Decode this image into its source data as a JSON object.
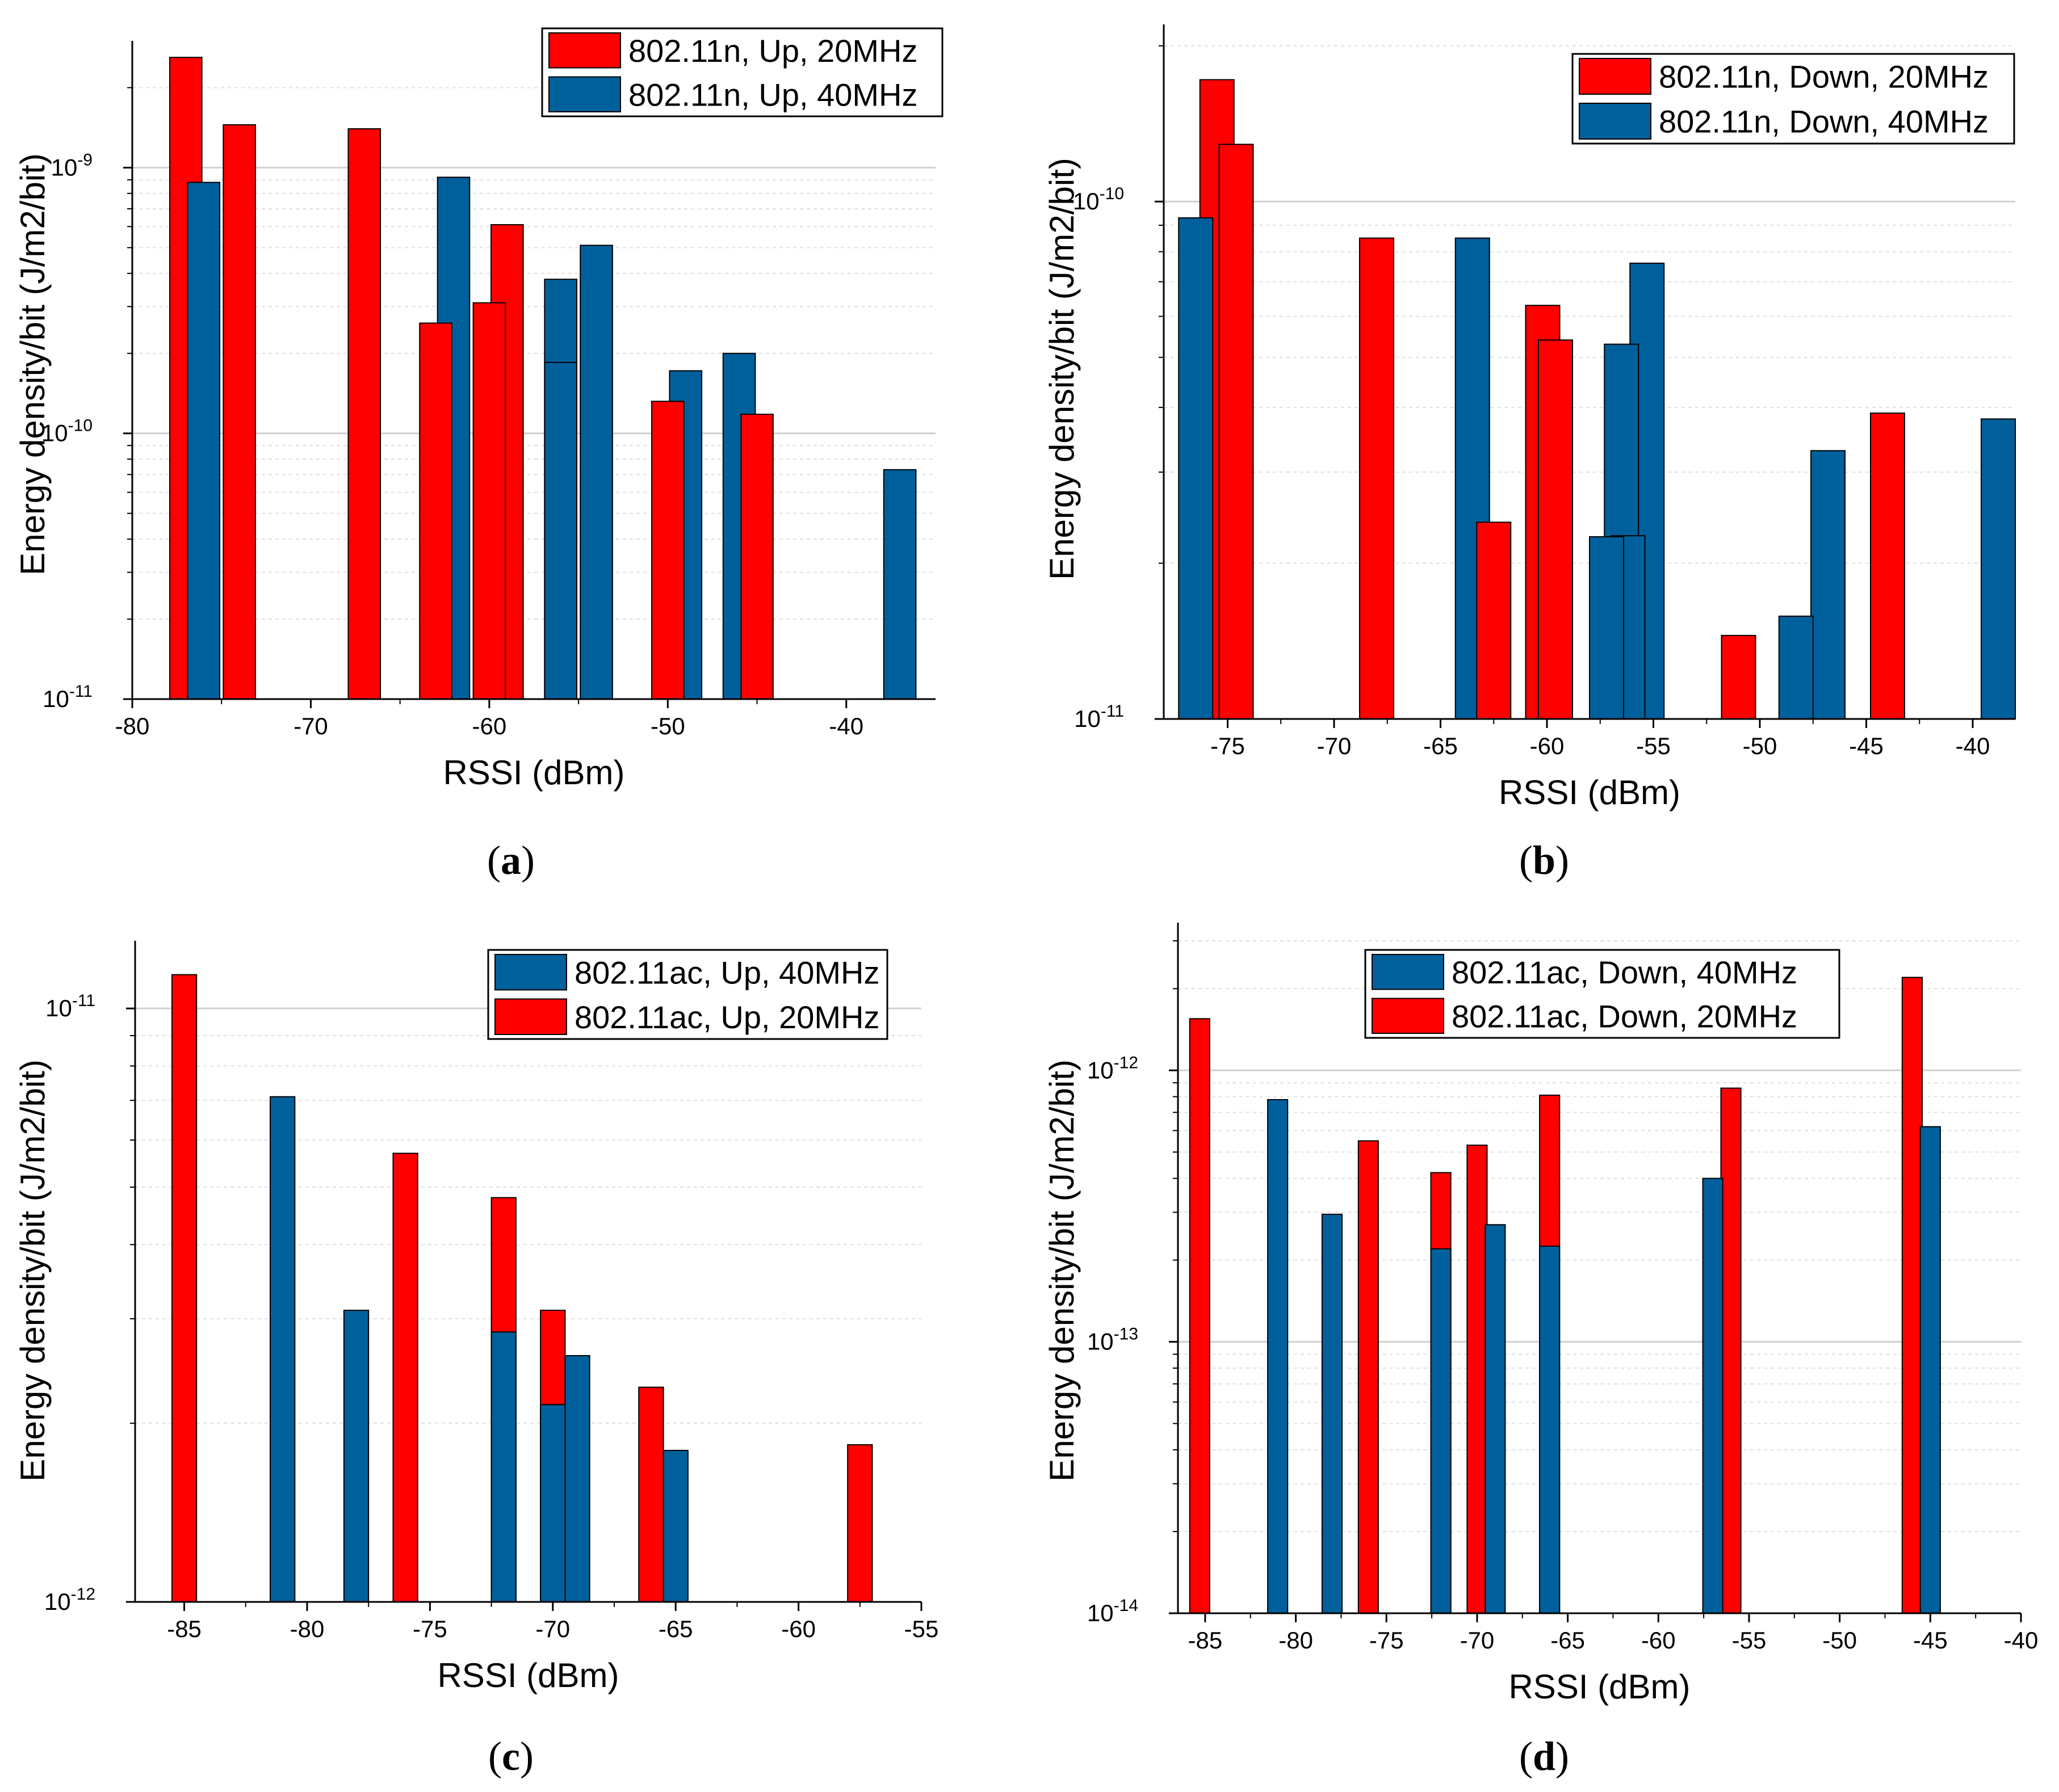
{
  "colors": {
    "red": "#ff0000",
    "blue": "#00609c",
    "grid": "#d0d0d0",
    "axis": "#000000"
  },
  "chart_data": [
    {
      "id": "a",
      "type": "bar",
      "caption": "(a)",
      "caption_letter": "a",
      "xlabel": "RSSI (dBm)",
      "ylabel": "Energy density/bit (J/m2/bit)",
      "yscale": "log",
      "xlim": [
        -80,
        -35
      ],
      "ylim": [
        1e-11,
        3e-09
      ],
      "xticks": [
        -80,
        -70,
        -60,
        -50,
        -40
      ],
      "yticks": [
        {
          "value": 1e-11,
          "base": "10",
          "exp": "-11"
        },
        {
          "value": 1e-10,
          "base": "10",
          "exp": "-10"
        },
        {
          "value": 1e-09,
          "base": "10",
          "exp": "-9"
        }
      ],
      "bar_width": 1.8,
      "legend": {
        "position": "top-right",
        "entries": [
          {
            "label": "802.11n, Up, 20MHz",
            "color": "red"
          },
          {
            "label": "802.11n, Up, 40MHz",
            "color": "blue"
          }
        ]
      },
      "series": [
        {
          "name": "802.11n, Up, 20MHz",
          "color": "red",
          "points": [
            {
              "x": -77,
              "y": 2.6e-09
            },
            {
              "x": -74,
              "y": 1.45e-09
            },
            {
              "x": -67,
              "y": 1.4e-09
            },
            {
              "x": -63,
              "y": 2.6e-10
            },
            {
              "x": -60,
              "y": 3.1e-10
            },
            {
              "x": -59,
              "y": 6.1e-10
            },
            {
              "x": -50,
              "y": 1.32e-10
            },
            {
              "x": -45,
              "y": 1.18e-10
            }
          ]
        },
        {
          "name": "802.11n, Up, 40MHz",
          "color": "blue",
          "points": [
            {
              "x": -76,
              "y": 8.8e-10
            },
            {
              "x": -62,
              "y": 9.2e-10
            },
            {
              "x": -56,
              "y": 3.8e-10
            },
            {
              "x": -56,
              "y": 1.85e-10
            },
            {
              "x": -54,
              "y": 5.1e-10
            },
            {
              "x": -49,
              "y": 1.72e-10
            },
            {
              "x": -46,
              "y": 2e-10
            },
            {
              "x": -37,
              "y": 7.3e-11
            }
          ]
        }
      ]
    },
    {
      "id": "b",
      "type": "bar",
      "caption": "(b)",
      "caption_letter": "b",
      "xlabel": "RSSI (dBm)",
      "ylabel": "Energy density/bit (J/m2/bit)",
      "yscale": "log",
      "xlim": [
        -78,
        -38
      ],
      "ylim": [
        1e-11,
        2.2e-10
      ],
      "xticks": [
        -75,
        -70,
        -65,
        -60,
        -55,
        -50,
        -45,
        -40
      ],
      "yticks": [
        {
          "value": 1e-11,
          "base": "10",
          "exp": "-11"
        },
        {
          "value": 1e-10,
          "base": "10",
          "exp": "-10"
        }
      ],
      "bar_width": 1.6,
      "legend": {
        "position": "top-right",
        "entries": [
          {
            "label": "802.11n, Down, 20MHz",
            "color": "red"
          },
          {
            "label": "802.11n, Down, 40MHz",
            "color": "blue"
          }
        ]
      },
      "series": [
        {
          "name": "802.11n, Down, 20MHz",
          "color": "red",
          "points": [
            {
              "x": -75.5,
              "y": 1.72e-10
            },
            {
              "x": -74.6,
              "y": 1.29e-10
            },
            {
              "x": -68,
              "y": 8.5e-11
            },
            {
              "x": -62.5,
              "y": 2.4e-11
            },
            {
              "x": -60.2,
              "y": 6.3e-11
            },
            {
              "x": -59.6,
              "y": 5.4e-11
            },
            {
              "x": -51,
              "y": 1.45e-11
            },
            {
              "x": -44,
              "y": 3.9e-11
            }
          ]
        },
        {
          "name": "802.11n, Down, 40MHz",
          "color": "blue",
          "points": [
            {
              "x": -76.5,
              "y": 9.3e-11
            },
            {
              "x": -63.5,
              "y": 8.5e-11
            },
            {
              "x": -57.2,
              "y": 2.25e-11
            },
            {
              "x": -56.5,
              "y": 5.3e-11
            },
            {
              "x": -56.2,
              "y": 2.26e-11
            },
            {
              "x": -55.3,
              "y": 7.6e-11
            },
            {
              "x": -48.3,
              "y": 1.58e-11
            },
            {
              "x": -46.8,
              "y": 3.3e-11
            },
            {
              "x": -38.8,
              "y": 3.8e-11
            }
          ]
        }
      ]
    },
    {
      "id": "c",
      "type": "bar",
      "caption": "(c)",
      "caption_letter": "c",
      "xlabel": "RSSI (dBm)",
      "ylabel": "Energy density/bit (J/m2/bit)",
      "yscale": "log",
      "xlim": [
        -87,
        -55
      ],
      "ylim": [
        1e-12,
        1.3e-11
      ],
      "xticks": [
        -85,
        -80,
        -75,
        -70,
        -65,
        -60,
        -55
      ],
      "yticks": [
        {
          "value": 1e-12,
          "base": "10",
          "exp": "-12"
        },
        {
          "value": 1e-11,
          "base": "10",
          "exp": "-11"
        }
      ],
      "bar_width": 1.0,
      "legend": {
        "position": "top-right",
        "entries": [
          {
            "label": "802.11ac, Up, 40MHz",
            "color": "blue"
          },
          {
            "label": "802.11ac, Up, 20MHz",
            "color": "red"
          }
        ]
      },
      "series": [
        {
          "name": "802.11ac, Up, 20MHz",
          "color": "red",
          "points": [
            {
              "x": -85,
              "y": 1.14e-11
            },
            {
              "x": -76,
              "y": 5.7e-12
            },
            {
              "x": -72,
              "y": 4.8e-12
            },
            {
              "x": -70,
              "y": 3.1e-12
            },
            {
              "x": -66,
              "y": 2.3e-12
            },
            {
              "x": -57.5,
              "y": 1.84e-12
            }
          ]
        },
        {
          "name": "802.11ac, Up, 40MHz",
          "color": "blue",
          "points": [
            {
              "x": -81,
              "y": 7.1e-12
            },
            {
              "x": -78,
              "y": 3.1e-12
            },
            {
              "x": -72,
              "y": 2.85e-12
            },
            {
              "x": -70,
              "y": 2.15e-12
            },
            {
              "x": -69,
              "y": 2.6e-12
            },
            {
              "x": -65,
              "y": 1.8e-12
            }
          ]
        }
      ]
    },
    {
      "id": "d",
      "type": "bar",
      "caption": "(d)",
      "caption_letter": "d",
      "xlabel": "RSSI (dBm)",
      "ylabel": "Energy density/bit (J/m2/bit)",
      "yscale": "log",
      "xlim": [
        -86.5,
        -40
      ],
      "ylim": [
        1e-14,
        3.5e-12
      ],
      "xticks": [
        -85,
        -80,
        -75,
        -70,
        -65,
        -60,
        -55,
        -50,
        -45,
        -40
      ],
      "yticks": [
        {
          "value": 1e-14,
          "base": "10",
          "exp": "-14"
        },
        {
          "value": 1e-13,
          "base": "10",
          "exp": "-13"
        },
        {
          "value": 1e-12,
          "base": "10",
          "exp": "-12"
        }
      ],
      "bar_width": 1.1,
      "legend": {
        "position": "top-center",
        "entries": [
          {
            "label": "802.11ac, Down, 40MHz",
            "color": "blue"
          },
          {
            "label": "802.11ac, Down, 20MHz",
            "color": "red"
          }
        ]
      },
      "series": [
        {
          "name": "802.11ac, Down, 20MHz",
          "color": "red",
          "points": [
            {
              "x": -85.3,
              "y": 1.55e-12
            },
            {
              "x": -76,
              "y": 5.5e-13
            },
            {
              "x": -72,
              "y": 4.2e-13
            },
            {
              "x": -70,
              "y": 5.3e-13
            },
            {
              "x": -66,
              "y": 8.1e-13
            },
            {
              "x": -56,
              "y": 8.6e-13
            },
            {
              "x": -46,
              "y": 2.2e-12
            }
          ]
        },
        {
          "name": "802.11ac, Down, 40MHz",
          "color": "blue",
          "points": [
            {
              "x": -81,
              "y": 7.8e-13
            },
            {
              "x": -78,
              "y": 2.95e-13
            },
            {
              "x": -72,
              "y": 2.2e-13
            },
            {
              "x": -69,
              "y": 2.7e-13
            },
            {
              "x": -66,
              "y": 2.25e-13
            },
            {
              "x": -57,
              "y": 4e-13
            },
            {
              "x": -45,
              "y": 6.2e-13
            }
          ]
        }
      ]
    }
  ]
}
